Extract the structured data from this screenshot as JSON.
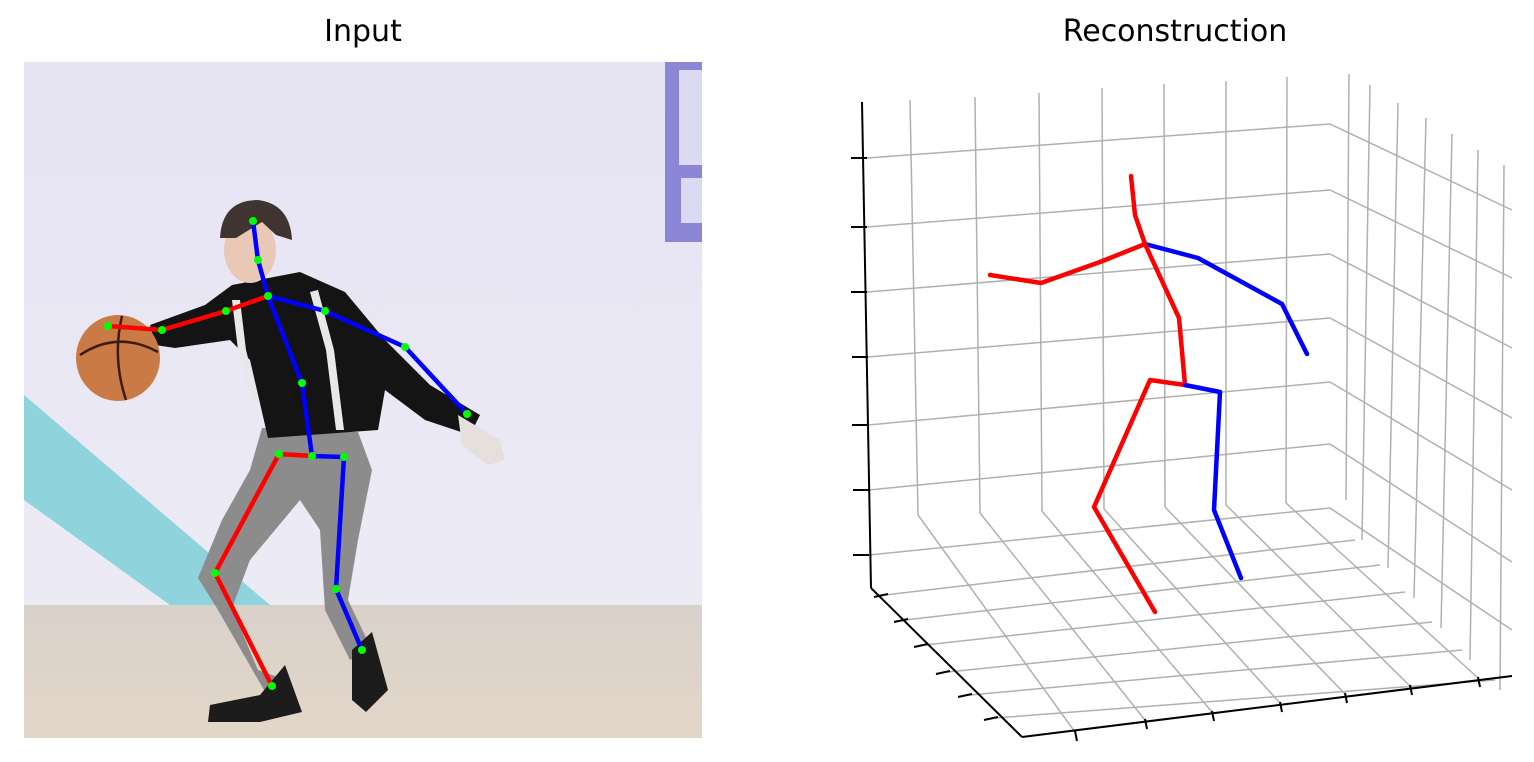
{
  "figure": {
    "input_title": "Input",
    "reconstruction_title": "Reconstruction"
  },
  "colors": {
    "right_side": "#ff0000",
    "left_side": "#0000ff",
    "joint": "#00ff00",
    "grid": "#b0b0b0",
    "axis": "#000000"
  },
  "icons": {
    "ball": "basketball-icon",
    "person": "person-silhouette-icon"
  }
}
